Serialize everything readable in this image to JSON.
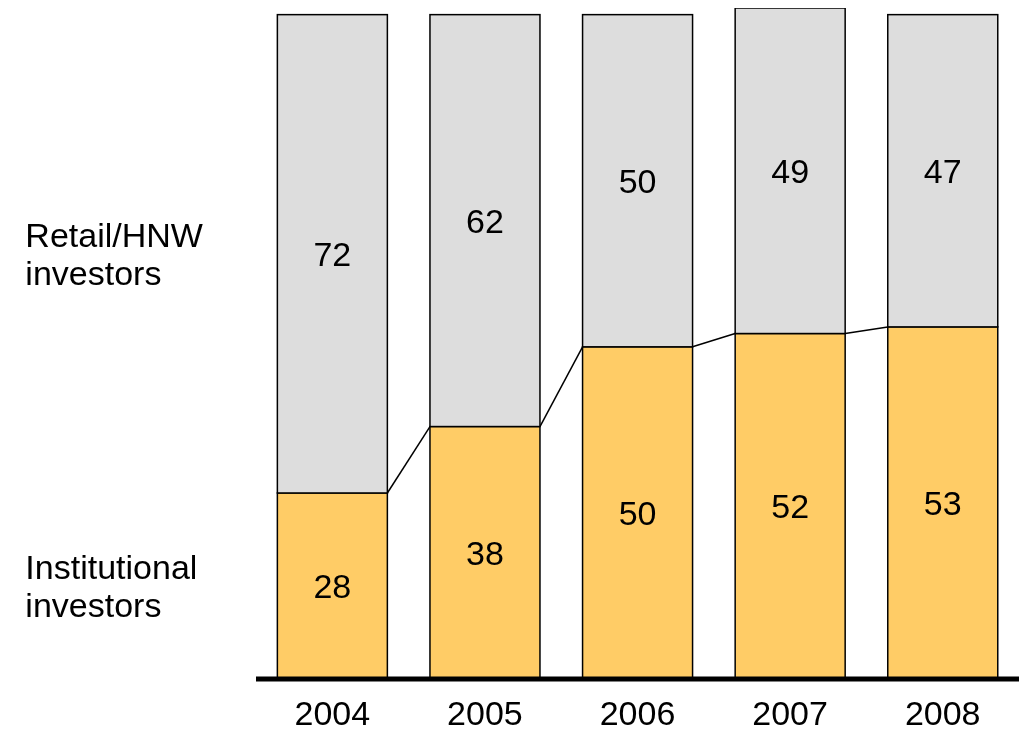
{
  "chart_data": {
    "type": "bar",
    "stacked": true,
    "categories": [
      "2004",
      "2005",
      "2006",
      "2007",
      "2008"
    ],
    "series": [
      {
        "name": "Institutional investors",
        "color": "#ffcc66",
        "values": [
          28,
          38,
          50,
          52,
          53
        ]
      },
      {
        "name": "Retail/HNW investors",
        "color": "#dddddd",
        "values": [
          72,
          62,
          50,
          49,
          47
        ]
      }
    ],
    "data_labels": true,
    "tick_labels": "x"
  }
}
